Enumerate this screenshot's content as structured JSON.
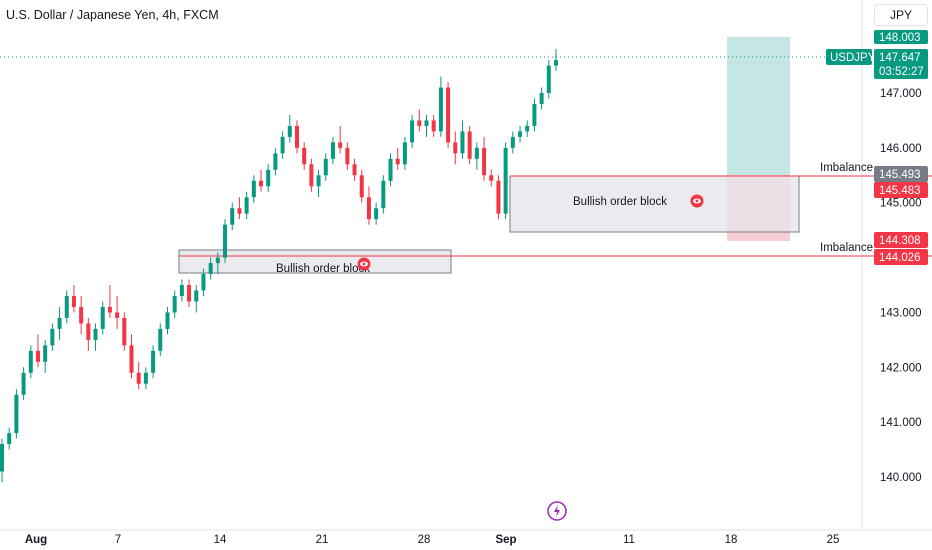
{
  "header": {
    "title": "U.S. Dollar / Japanese Yen, 4h, FXCM",
    "currency": "JPY"
  },
  "colors": {
    "up": "#089981",
    "down": "#f23645",
    "target_zone": "#b2dfdb",
    "stop_zone": "#f5c6cb",
    "order_block_fill": "#e8e8ec",
    "order_block_border": "#787b86"
  },
  "price_labels": {
    "target": "148.003",
    "symbol": "USDJPY",
    "last_price": "147.647",
    "countdown": "03:52:27",
    "imbalance_top_high": "145.493",
    "imbalance_top_low": "145.483",
    "imbalance_bottom_high": "144.308",
    "imbalance_bottom_low": "144.026"
  },
  "annotations": {
    "imbalance_top": "Imbalance",
    "imbalance_bottom": "Imbalance",
    "order_block_upper": "Bullish order block",
    "order_block_lower": "Bullish order block"
  },
  "chart_data": {
    "type": "candlestick",
    "title": "U.S. Dollar / Japanese Yen, 4h, FXCM",
    "y_axis": {
      "ticks": [
        "140.000",
        "141.000",
        "142.000",
        "143.000",
        "144.000",
        "145.000",
        "146.000",
        "147.000"
      ],
      "range": [
        139.4,
        148.6
      ]
    },
    "x_axis": {
      "ticks": [
        {
          "label": "Aug",
          "bold": true
        },
        {
          "label": "7",
          "bold": false
        },
        {
          "label": "14",
          "bold": false
        },
        {
          "label": "21",
          "bold": false
        },
        {
          "label": "28",
          "bold": false
        },
        {
          "label": "Sep",
          "bold": true
        },
        {
          "label": "11",
          "bold": false
        },
        {
          "label": "18",
          "bold": false
        },
        {
          "label": "25",
          "bold": false
        }
      ]
    },
    "series": [
      {
        "candles": [
          [
            140.1,
            140.7,
            139.9,
            140.6
          ],
          [
            140.6,
            140.9,
            140.5,
            140.8
          ],
          [
            140.8,
            141.6,
            140.7,
            141.5
          ],
          [
            141.5,
            142.0,
            141.4,
            141.9
          ],
          [
            141.9,
            142.4,
            141.8,
            142.3
          ],
          [
            142.3,
            142.6,
            142.0,
            142.1
          ],
          [
            142.1,
            142.5,
            141.9,
            142.4
          ],
          [
            142.4,
            142.8,
            142.3,
            142.7
          ],
          [
            142.7,
            143.1,
            142.5,
            142.9
          ],
          [
            142.9,
            143.4,
            142.8,
            143.3
          ],
          [
            143.3,
            143.5,
            143.0,
            143.1
          ],
          [
            143.1,
            143.3,
            142.6,
            142.8
          ],
          [
            142.8,
            142.9,
            142.3,
            142.5
          ],
          [
            142.5,
            142.8,
            142.3,
            142.7
          ],
          [
            142.7,
            143.2,
            142.6,
            143.1
          ],
          [
            143.1,
            143.5,
            142.9,
            143.0
          ],
          [
            143.0,
            143.3,
            142.7,
            142.9
          ],
          [
            142.9,
            143.0,
            142.3,
            142.4
          ],
          [
            142.4,
            142.6,
            141.8,
            141.9
          ],
          [
            141.9,
            142.1,
            141.6,
            141.7
          ],
          [
            141.7,
            142.0,
            141.6,
            141.9
          ],
          [
            141.9,
            142.4,
            141.8,
            142.3
          ],
          [
            142.3,
            142.8,
            142.2,
            142.7
          ],
          [
            142.7,
            143.1,
            142.6,
            143.0
          ],
          [
            143.0,
            143.4,
            142.9,
            143.3
          ],
          [
            143.3,
            143.6,
            143.2,
            143.5
          ],
          [
            143.5,
            143.6,
            143.1,
            143.2
          ],
          [
            143.2,
            143.5,
            143.0,
            143.4
          ],
          [
            143.4,
            143.8,
            143.3,
            143.7
          ],
          [
            143.7,
            144.0,
            143.6,
            143.9
          ],
          [
            143.9,
            144.1,
            143.7,
            144.0
          ],
          [
            144.0,
            144.7,
            143.9,
            144.6
          ],
          [
            144.6,
            145.0,
            144.5,
            144.9
          ],
          [
            144.9,
            145.1,
            144.7,
            144.8
          ],
          [
            144.8,
            145.2,
            144.7,
            145.1
          ],
          [
            145.1,
            145.5,
            145.0,
            145.4
          ],
          [
            145.4,
            145.6,
            145.2,
            145.3
          ],
          [
            145.3,
            145.7,
            145.2,
            145.6
          ],
          [
            145.6,
            146.0,
            145.5,
            145.9
          ],
          [
            145.9,
            146.3,
            145.8,
            146.2
          ],
          [
            146.2,
            146.6,
            146.1,
            146.4
          ],
          [
            146.4,
            146.5,
            145.9,
            146.0
          ],
          [
            146.0,
            146.1,
            145.6,
            145.7
          ],
          [
            145.7,
            145.8,
            145.2,
            145.3
          ],
          [
            145.3,
            145.6,
            145.1,
            145.5
          ],
          [
            145.5,
            145.9,
            145.4,
            145.8
          ],
          [
            145.8,
            146.2,
            145.7,
            146.1
          ],
          [
            146.1,
            146.4,
            145.9,
            146.0
          ],
          [
            146.0,
            146.1,
            145.6,
            145.7
          ],
          [
            145.7,
            145.8,
            145.4,
            145.5
          ],
          [
            145.5,
            145.6,
            145.0,
            145.1
          ],
          [
            145.1,
            145.3,
            144.6,
            144.7
          ],
          [
            144.7,
            145.0,
            144.6,
            144.9
          ],
          [
            144.9,
            145.5,
            144.8,
            145.4
          ],
          [
            145.4,
            145.9,
            145.3,
            145.8
          ],
          [
            145.8,
            146.0,
            145.6,
            145.7
          ],
          [
            145.7,
            146.2,
            145.6,
            146.1
          ],
          [
            146.1,
            146.6,
            146.0,
            146.5
          ],
          [
            146.5,
            146.7,
            146.3,
            146.4
          ],
          [
            146.4,
            146.6,
            146.2,
            146.5
          ],
          [
            146.5,
            146.6,
            146.2,
            146.3
          ],
          [
            146.3,
            147.3,
            146.2,
            147.1
          ],
          [
            147.1,
            147.2,
            146.0,
            146.1
          ],
          [
            146.1,
            146.3,
            145.7,
            145.9
          ],
          [
            145.9,
            146.5,
            145.8,
            146.3
          ],
          [
            146.3,
            146.4,
            145.7,
            145.8
          ],
          [
            145.8,
            146.1,
            145.6,
            146.0
          ],
          [
            146.0,
            146.2,
            145.4,
            145.5
          ],
          [
            145.5,
            145.6,
            145.3,
            145.4
          ],
          [
            145.4,
            145.5,
            144.7,
            144.8
          ],
          [
            144.8,
            146.1,
            144.7,
            146.0
          ],
          [
            146.0,
            146.3,
            145.9,
            146.2
          ],
          [
            146.2,
            146.4,
            146.1,
            146.3
          ],
          [
            146.3,
            146.5,
            146.2,
            146.4
          ],
          [
            146.4,
            146.9,
            146.3,
            146.8
          ],
          [
            146.8,
            147.1,
            146.7,
            147.0
          ],
          [
            147.0,
            147.6,
            146.9,
            147.5
          ],
          [
            147.5,
            147.8,
            147.4,
            147.6
          ]
        ]
      }
    ],
    "annotations": [
      "Bullish order block",
      "Bullish order block",
      "Imbalance",
      "Imbalance"
    ]
  }
}
